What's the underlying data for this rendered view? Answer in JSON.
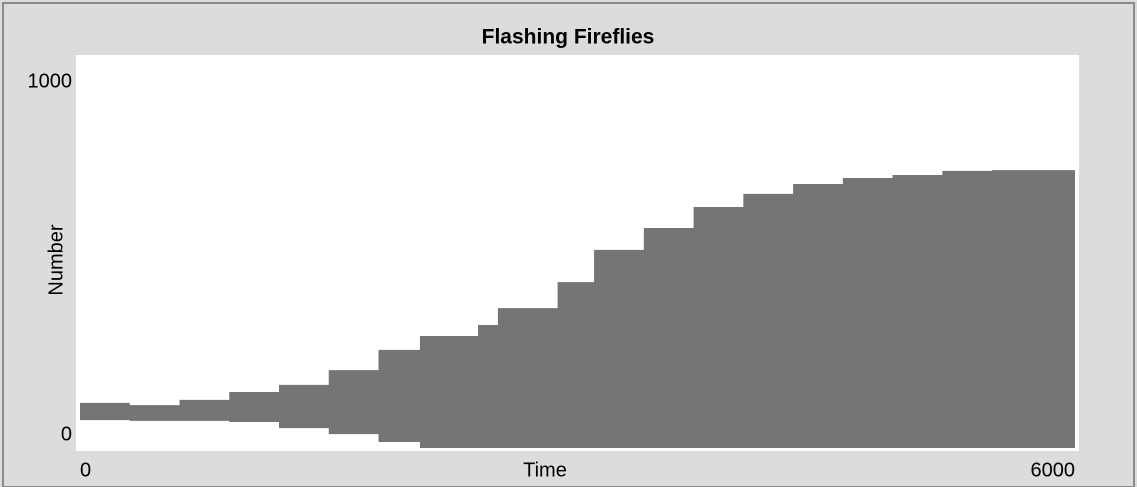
{
  "chart_data": {
    "type": "range",
    "title": "Flashing Fireflies",
    "x_label": "Time",
    "y_label": "Number",
    "x": [
      0,
      300,
      600,
      900,
      1200,
      1500,
      1800,
      2050,
      2400,
      2520,
      2640,
      2880,
      3100,
      3400,
      3700,
      4000,
      4300,
      4600,
      4900,
      5200,
      5500,
      6000
    ],
    "series": [
      {
        "color": "#757575",
        "values": [
          120,
          114,
          128,
          149,
          168,
          207,
          261,
          298,
          327,
          372,
          372,
          441,
          527,
          585,
          641,
          676,
          702,
          718,
          726,
          737,
          739,
          739
        ]
      },
      {
        "color": "#757575",
        "values": [
          74,
          72,
          72,
          69,
          53,
          37,
          16,
          0,
          0,
          0,
          0,
          0,
          0,
          0,
          0,
          0,
          0,
          0,
          0,
          0,
          0,
          0
        ]
      }
    ],
    "xlim": [
      0,
      6000
    ],
    "xticks": [
      0,
      6000
    ],
    "ylim": [
      0,
      1000
    ],
    "yticks": [
      0,
      1000
    ]
  }
}
